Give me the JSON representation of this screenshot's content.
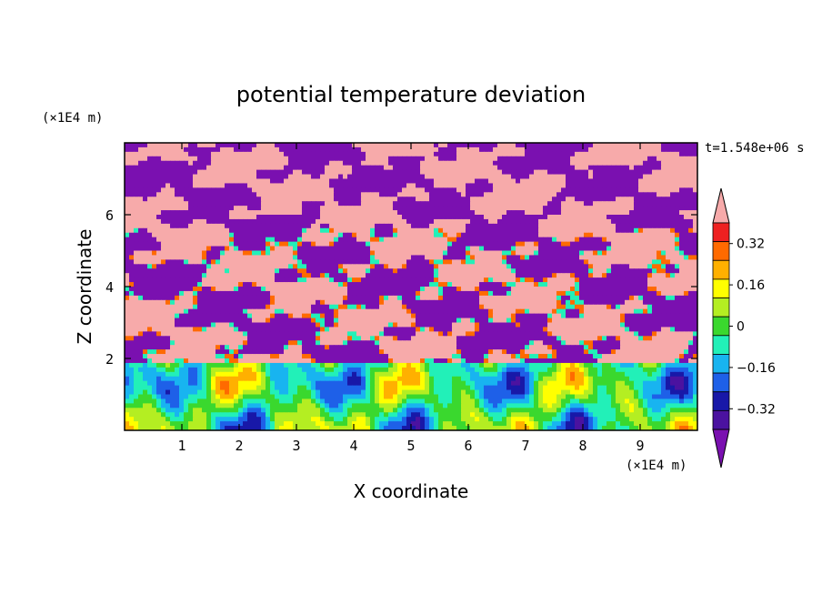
{
  "chart_data": {
    "type": "heatmap",
    "title": "potential temperature deviation",
    "xlabel": "X coordinate",
    "ylabel": "Z coordinate",
    "x_unit": "(×1E4 m)",
    "y_unit": "(×1E4 m)",
    "time_label": "t=1.548e+06 s",
    "xlim": [
      0,
      10
    ],
    "ylim": [
      0,
      8
    ],
    "x_ticks": [
      1,
      2,
      3,
      4,
      5,
      6,
      7,
      8,
      9
    ],
    "y_ticks": [
      2,
      4,
      6
    ],
    "x_tick_labels": [
      "1",
      "2",
      "3",
      "4",
      "5",
      "6",
      "7",
      "8",
      "9"
    ],
    "y_tick_labels": [
      "2",
      "4",
      "6"
    ],
    "colorbar": {
      "levels": [
        -0.4,
        -0.32,
        -0.24,
        -0.16,
        -0.08,
        0,
        0.08,
        0.16,
        0.24,
        0.32,
        0.4
      ],
      "colors": [
        "#4b12a0",
        "#1818a8",
        "#1e60e8",
        "#18b4f0",
        "#22f0b8",
        "#3ad82e",
        "#b4ee22",
        "#ffff00",
        "#ffb000",
        "#ff6a00",
        "#ee2020"
      ],
      "under_color": "#7a10b0",
      "over_color": "#f7aaaa",
      "tick_labels": [
        "0.32",
        "0.16",
        "0",
        "−0.16",
        "−0.32"
      ],
      "tick_values": [
        0.32,
        0.16,
        0,
        -0.16,
        -0.32
      ]
    },
    "regions": {
      "upper_layer": {
        "z_range": [
          1.9,
          8
        ],
        "colors": [
          "#7a10b0",
          "#f7aaaa"
        ]
      },
      "lower_layer": {
        "z_range": [
          0,
          1.9
        ],
        "colors": [
          "#1818a8",
          "#1e60e8",
          "#18b4f0",
          "#22f0b8",
          "#3ad82e",
          "#b4ee22",
          "#ffff00",
          "#ffb000",
          "#ff6a00"
        ]
      }
    }
  }
}
